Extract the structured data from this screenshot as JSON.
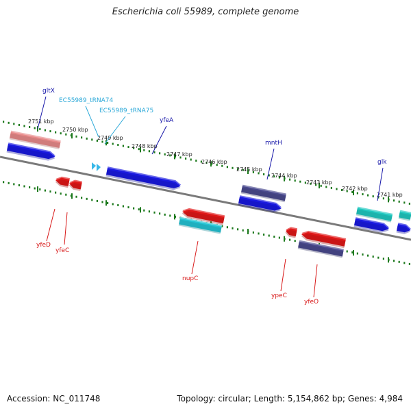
{
  "title": "Escherichia coli 55989, complete genome",
  "footer": {
    "accession": "Accession: NC_011748",
    "summary": "Topology: circular; Length: 5,154,862 bp; Genes: 4,984"
  },
  "colors": {
    "backbone": "#808080",
    "tick_green": "#1e7a1e",
    "label_blue": "#1515a8",
    "label_cyan": "#2aa8d8",
    "label_red": "#d81818",
    "gene_blue": "#1a1ae0",
    "gene_red": "#e01818",
    "gene_pink": "#e88a8a",
    "gene_navy": "#4a4a8e",
    "gene_cyan": "#24c4d4",
    "gene_teal": "#20c8c0",
    "trna_cyan": "#38b8e8"
  },
  "kbp_labels": [
    "2751 kbp",
    "2750 kbp",
    "2749 kbp",
    "2748 kbp",
    "2747 kbp",
    "2746 kbp",
    "2745 kbp",
    "2744 kbp",
    "2743 kbp",
    "2742 kbp",
    "2741 kbp"
  ],
  "genes_top": [
    {
      "label": "gltX",
      "color": "label_blue"
    },
    {
      "label": "EC55989_tRNA74",
      "color": "label_cyan"
    },
    {
      "label": "EC55989_tRNA75",
      "color": "label_cyan"
    },
    {
      "label": "yfeA",
      "color": "label_blue"
    },
    {
      "label": "mntH",
      "color": "label_blue"
    },
    {
      "label": "glk",
      "color": "label_blue"
    }
  ],
  "genes_bottom": [
    {
      "label": "yfeD",
      "color": "label_red"
    },
    {
      "label": "yfeC",
      "color": "label_red"
    },
    {
      "label": "nupC",
      "color": "label_red"
    },
    {
      "label": "ypeC",
      "color": "label_red"
    },
    {
      "label": "yfeO",
      "color": "label_red"
    }
  ]
}
